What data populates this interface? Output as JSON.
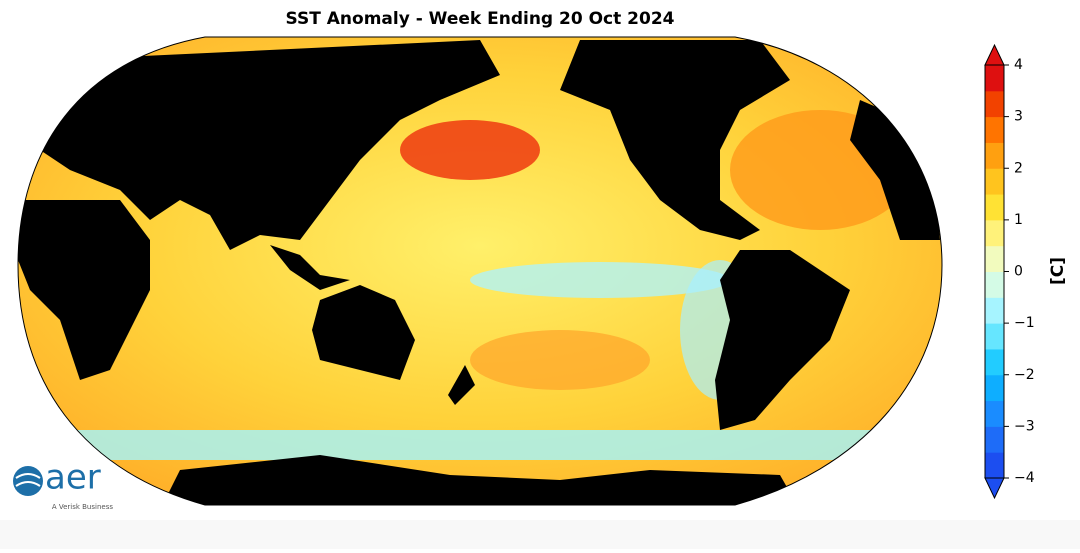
{
  "title": "SST Anomaly - Week Ending 20 Oct 2024",
  "colorbar": {
    "label": "[C]",
    "lim": [
      -4,
      4
    ],
    "ticks": [
      {
        "value": -4,
        "label": "−4"
      },
      {
        "value": -3,
        "label": "−3"
      },
      {
        "value": -2,
        "label": "−2"
      },
      {
        "value": -1,
        "label": "−1"
      },
      0,
      1,
      2,
      3,
      4
    ],
    "colors": [
      "#1c4ef0",
      "#1e6cf8",
      "#1a8cff",
      "#0eaeff",
      "#22ccff",
      "#66e6ff",
      "#a6f4ff",
      "#d4fbe6",
      "#f2fbbe",
      "#fff27a",
      "#ffe234",
      "#ffc41e",
      "#ffa010",
      "#ff7400",
      "#f24200",
      "#de1010"
    ]
  },
  "logo": {
    "name": "aer",
    "tagline": "A Verisk Business"
  }
}
